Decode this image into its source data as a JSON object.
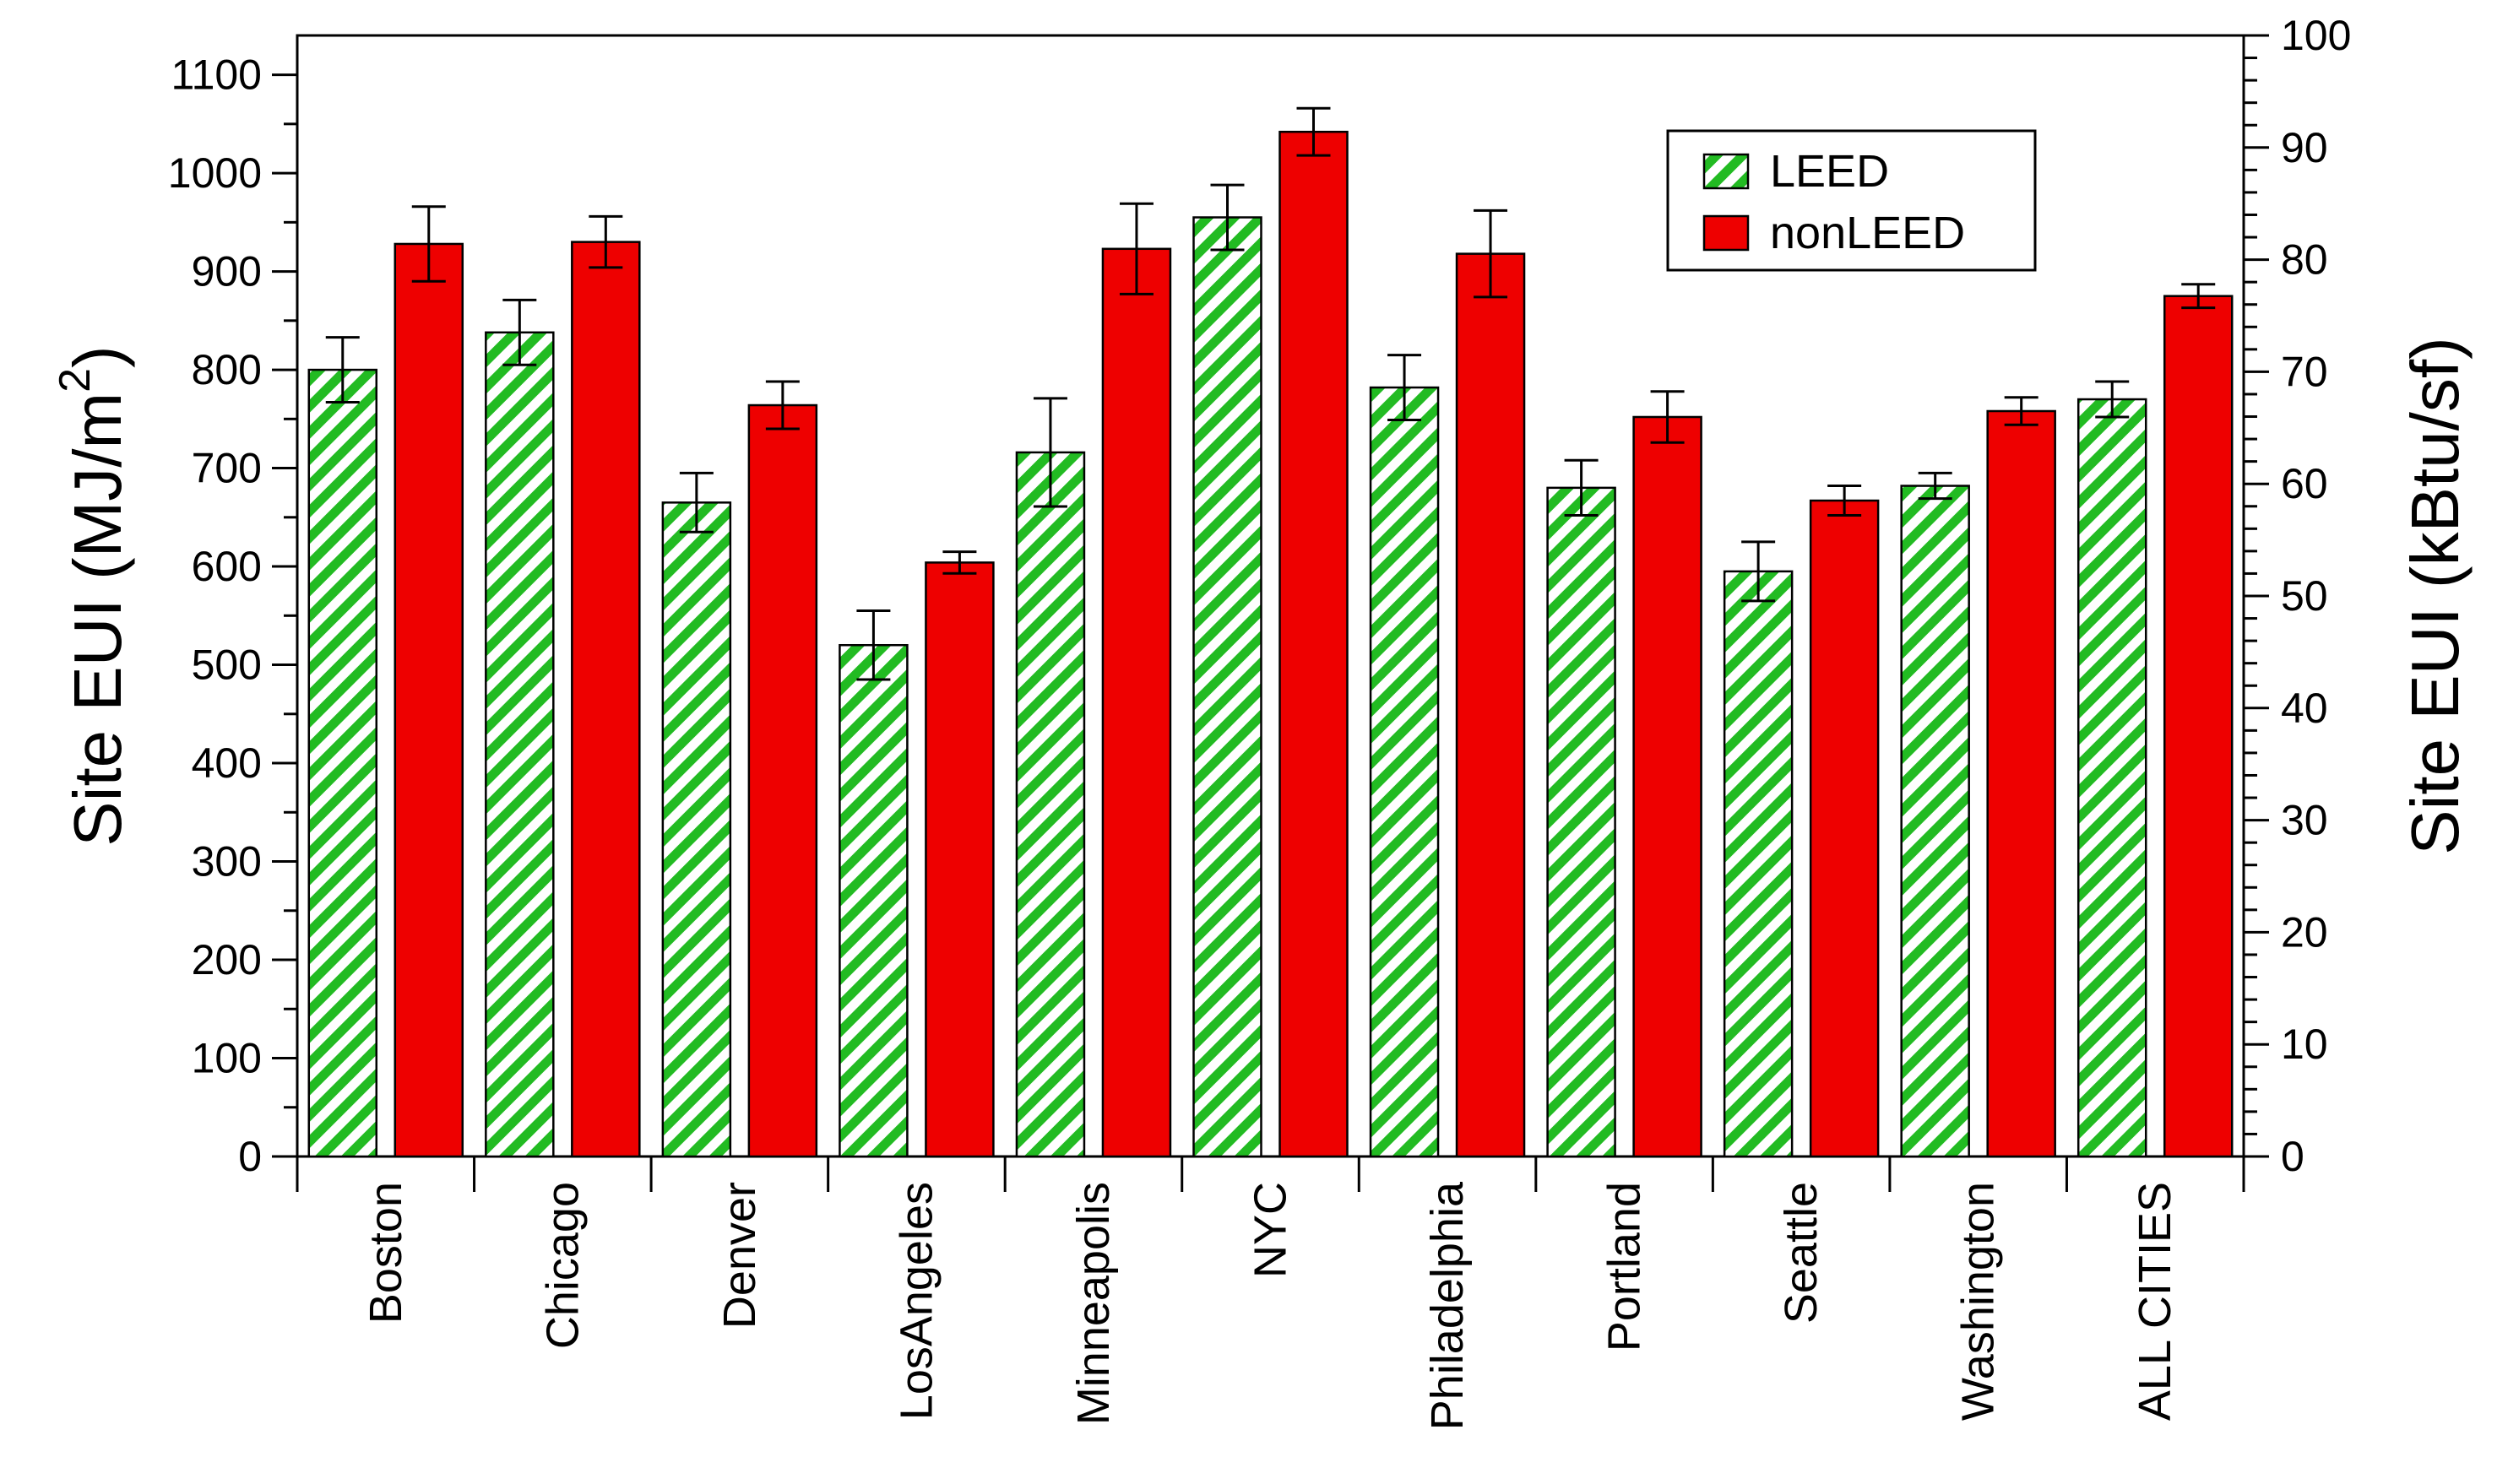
{
  "chart_data": {
    "type": "bar",
    "categories": [
      "Boston",
      "Chicago",
      "Denver",
      "LosAngeles",
      "Minneapolis",
      "NYC",
      "Philadelphia",
      "Portland",
      "Seattle",
      "Washington",
      "ALL CITIES"
    ],
    "series": [
      {
        "name": "LEED",
        "color": "#22bb22",
        "pattern": "diagonal-hatch",
        "values": [
          800,
          838,
          665,
          520,
          716,
          955,
          782,
          680,
          595,
          682,
          770
        ],
        "error": [
          33,
          33,
          30,
          35,
          55,
          33,
          33,
          28,
          30,
          13,
          18
        ]
      },
      {
        "name": "nonLEED",
        "color": "#ee0000",
        "pattern": "solid",
        "values": [
          928,
          930,
          764,
          604,
          923,
          1042,
          918,
          752,
          667,
          758,
          875
        ],
        "error": [
          38,
          26,
          24,
          11,
          46,
          24,
          44,
          26,
          15,
          14,
          12
        ]
      }
    ],
    "ylabel": "Site EUI (MJ/m",
    "ylabel_sup": "2",
    "ylabel_tail": ")",
    "ylim": [
      0,
      1100
    ],
    "yticks": [
      "0",
      "100",
      "200",
      "300",
      "400",
      "500",
      "600",
      "700",
      "800",
      "900",
      "1000",
      "1100"
    ],
    "y2label": "Site EUI (kBtu/sf)",
    "y2lim": [
      0,
      100
    ],
    "y2ticks": [
      "0",
      "10",
      "20",
      "30",
      "40",
      "50",
      "60",
      "70",
      "80",
      "90",
      "100"
    ],
    "legend": {
      "position": "top-right",
      "entries": [
        "LEED",
        "nonLEED"
      ]
    }
  }
}
